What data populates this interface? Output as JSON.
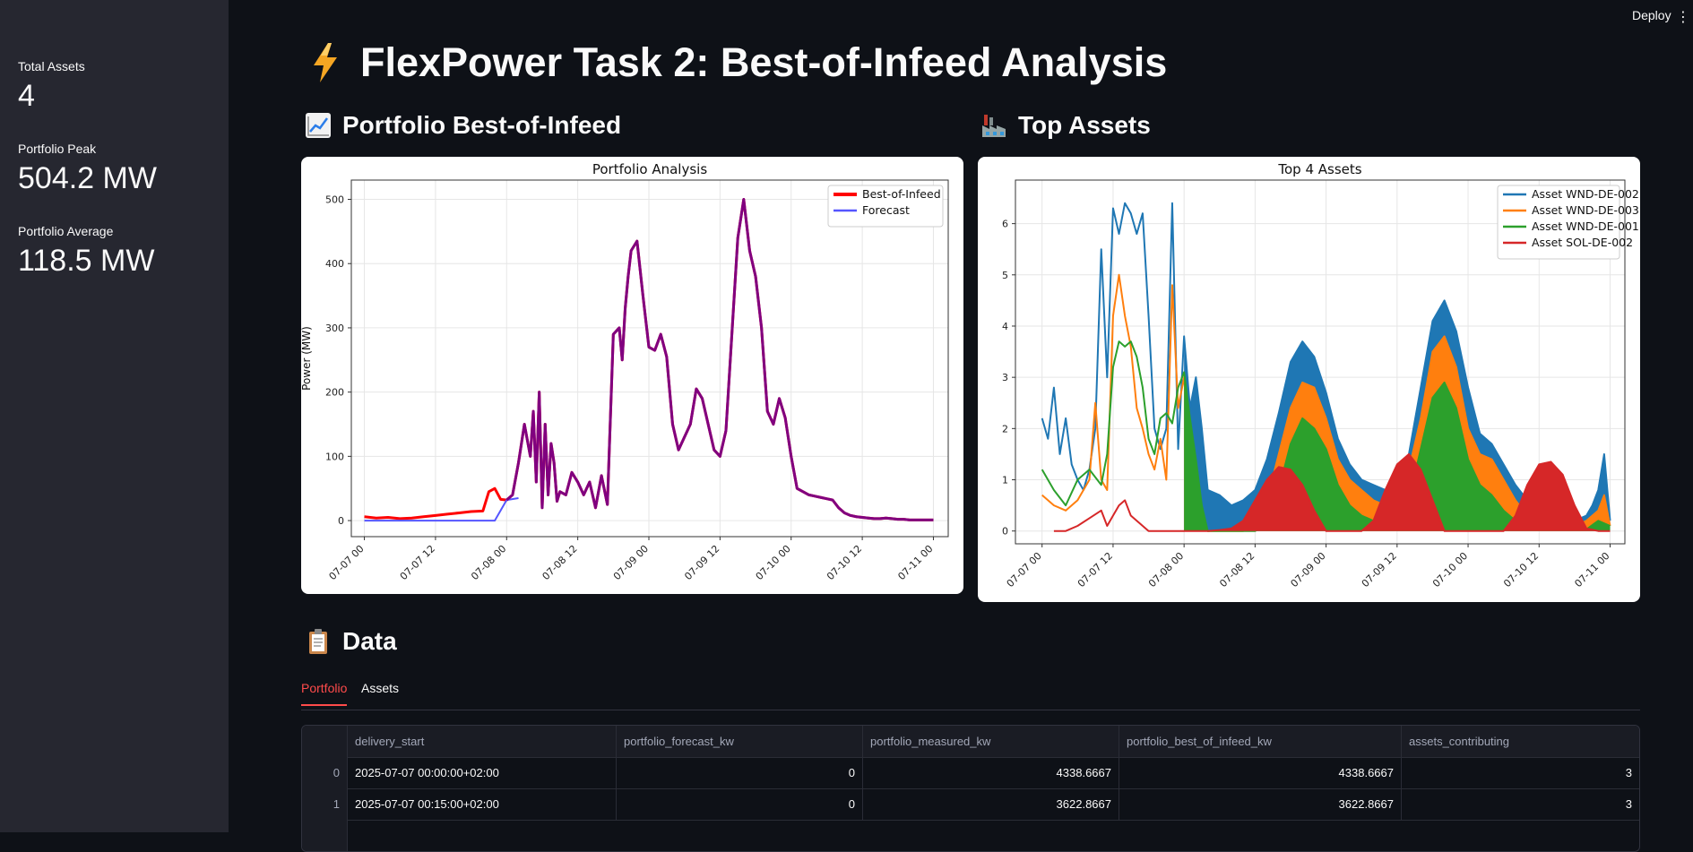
{
  "topbar": {
    "deploy_label": "Deploy",
    "menu_glyph": "⋮"
  },
  "sidebar": {
    "metrics": [
      {
        "label": "Total Assets",
        "value": "4"
      },
      {
        "label": "Portfolio Peak",
        "value": "504.2 MW"
      },
      {
        "label": "Portfolio Average",
        "value": "118.5 MW"
      }
    ]
  },
  "page": {
    "title_icon": "lightning-icon",
    "title": "FlexPower Task 2: Best-of-Infeed Analysis",
    "portfolio_heading": "Portfolio Best-of-Infeed",
    "portfolio_heading_icon": "chart-increasing-icon",
    "assets_heading": "Top Assets",
    "assets_heading_icon": "factory-icon",
    "data_heading": "Data",
    "data_heading_icon": "clipboard-icon"
  },
  "colors": {
    "accent": "#ff4b4b",
    "best_of_infeed": "#ff0000",
    "forecast": "#5555ff",
    "overlap": "#800080",
    "wnd_de_002": "#1f77b4",
    "wnd_de_003": "#ff7f0e",
    "wnd_de_001": "#2ca02c",
    "sol_de_002": "#d62728"
  },
  "chart_data": [
    {
      "type": "line",
      "title": "Portfolio Analysis",
      "xlabel": "",
      "ylabel": "Power (MW)",
      "xticks": [
        "07-07 00",
        "07-07 12",
        "07-08 00",
        "07-08 12",
        "07-09 00",
        "07-09 12",
        "07-10 00",
        "07-10 12",
        "07-11 00"
      ],
      "yticks": [
        0,
        100,
        200,
        300,
        400,
        500
      ],
      "xlim_hours": [
        -2.2,
        98.5
      ],
      "ylim": [
        -25,
        530
      ],
      "grid": true,
      "legend": "top-right",
      "series": [
        {
          "name": "Best-of-Infeed",
          "x": [
            0,
            2,
            4,
            6,
            8,
            10,
            12,
            14,
            16,
            18,
            20,
            21,
            22,
            23,
            24,
            25,
            26,
            27,
            28,
            28.5,
            29,
            29.5,
            30,
            30.5,
            31,
            31.5,
            32,
            32.5,
            33,
            34,
            35,
            36,
            37,
            38,
            39,
            40,
            41,
            42,
            43,
            43.5,
            44,
            44.5,
            45,
            46,
            47,
            48,
            49,
            50,
            51,
            52,
            53,
            54,
            55,
            56,
            57,
            58,
            59,
            60,
            61,
            62,
            63,
            64,
            65,
            66,
            67,
            68,
            69,
            70,
            71,
            72,
            73,
            74,
            75,
            76,
            77,
            78,
            79,
            80,
            81,
            82,
            83,
            84,
            85,
            86,
            87,
            88,
            89,
            90,
            91,
            92,
            93,
            94,
            95,
            96
          ],
          "y": [
            6,
            4,
            5,
            3,
            4,
            6,
            8,
            10,
            12,
            14,
            15,
            45,
            50,
            33,
            32,
            40,
            90,
            150,
            100,
            170,
            60,
            200,
            20,
            150,
            40,
            120,
            90,
            30,
            45,
            40,
            75,
            60,
            40,
            60,
            20,
            70,
            25,
            290,
            300,
            250,
            330,
            380,
            420,
            435,
            350,
            270,
            265,
            290,
            255,
            150,
            110,
            130,
            150,
            205,
            190,
            150,
            110,
            100,
            140,
            290,
            440,
            500,
            420,
            380,
            300,
            170,
            150,
            190,
            160,
            100,
            50,
            45,
            40,
            38,
            36,
            34,
            32,
            20,
            12,
            8,
            6,
            5,
            4,
            3,
            3,
            4,
            3,
            2,
            2,
            1,
            1,
            1,
            1,
            1
          ],
          "color": "#ff0000"
        },
        {
          "name": "Forecast",
          "x": [
            0,
            4,
            8,
            12,
            16,
            20,
            22,
            24,
            26
          ],
          "y": [
            0,
            0,
            0,
            0,
            0,
            0,
            0,
            32,
            35
          ],
          "color": "#5555ff"
        }
      ]
    },
    {
      "type": "area",
      "title": "Top 4 Assets",
      "xlabel": "",
      "ylabel": "Power (MW)",
      "xticks": [
        "07-07 00",
        "07-07 12",
        "07-08 00",
        "07-08 12",
        "07-09 00",
        "07-09 12",
        "07-10 00",
        "07-10 12",
        "07-11 00"
      ],
      "yticks": [
        0,
        1,
        2,
        3,
        4,
        5,
        6
      ],
      "xlim_hours": [
        -4.5,
        98.5
      ],
      "ylim": [
        -0.25,
        6.85
      ],
      "grid": true,
      "legend": "top-right",
      "series": [
        {
          "name": "Asset WND-DE-002",
          "color": "#1f77b4",
          "x": [
            0,
            1,
            2,
            3,
            4,
            5,
            6,
            7,
            8,
            9,
            10,
            11,
            12,
            13,
            14,
            15,
            16,
            17,
            18,
            19,
            20,
            21,
            22,
            23,
            24,
            25,
            26,
            27,
            28,
            30,
            32,
            34,
            36,
            38,
            40,
            42,
            44,
            46,
            48,
            50,
            52,
            54,
            56,
            58,
            60,
            62,
            64,
            66,
            68,
            70,
            72,
            74,
            76,
            78,
            80,
            82,
            84,
            86,
            88,
            90,
            92,
            93,
            94,
            95,
            96
          ],
          "y": [
            2.2,
            1.8,
            2.8,
            1.5,
            2.2,
            1.3,
            1.0,
            0.8,
            1.2,
            2.0,
            5.5,
            3.0,
            6.3,
            5.8,
            6.4,
            6.2,
            5.8,
            6.2,
            4.2,
            2.0,
            1.6,
            2.0,
            6.4,
            1.6,
            3.8,
            2.4,
            3.0,
            2.0,
            0.8,
            0.7,
            0.5,
            0.6,
            0.8,
            1.4,
            2.3,
            3.3,
            3.7,
            3.4,
            2.7,
            1.8,
            1.3,
            1.0,
            0.9,
            0.8,
            0.9,
            1.5,
            2.8,
            4.1,
            4.5,
            3.9,
            2.8,
            1.9,
            1.7,
            1.3,
            0.9,
            0.6,
            0.4,
            0.3,
            0.2,
            0.2,
            0.3,
            0.5,
            0.8,
            1.5,
            0.2
          ]
        },
        {
          "name": "Asset WND-DE-003",
          "color": "#ff7f0e",
          "x": [
            0,
            2,
            4,
            6,
            8,
            9,
            10,
            11,
            12,
            13,
            14,
            15,
            16,
            17,
            18,
            19,
            20,
            21,
            22,
            23,
            24,
            25,
            26,
            27,
            28,
            30,
            32,
            34,
            36,
            38,
            40,
            42,
            44,
            46,
            48,
            50,
            52,
            54,
            56,
            58,
            60,
            62,
            64,
            66,
            68,
            70,
            72,
            74,
            76,
            78,
            80,
            82,
            84,
            86,
            88,
            90,
            92,
            94,
            95,
            96
          ],
          "y": [
            0.7,
            0.5,
            0.4,
            0.6,
            1.0,
            2.5,
            1.0,
            0.8,
            4.2,
            5.0,
            4.2,
            3.6,
            2.4,
            2.0,
            1.5,
            1.2,
            1.8,
            1.0,
            4.8,
            2.4,
            3.0,
            1.5,
            0.6,
            0.2,
            0.0,
            0.0,
            0.0,
            0.0,
            0.1,
            0.6,
            1.5,
            2.4,
            2.9,
            2.8,
            2.2,
            1.4,
            1.0,
            0.8,
            0.6,
            0.5,
            0.6,
            1.2,
            2.2,
            3.5,
            3.8,
            3.2,
            2.0,
            1.5,
            1.4,
            1.0,
            0.6,
            0.3,
            0.2,
            0.1,
            0.1,
            0.1,
            0.2,
            0.4,
            0.7,
            0.1
          ]
        },
        {
          "name": "Asset WND-DE-001",
          "color": "#2ca02c",
          "x": [
            0,
            2,
            4,
            6,
            8,
            10,
            11,
            12,
            13,
            14,
            15,
            16,
            17,
            18,
            19,
            20,
            21,
            22,
            23,
            24,
            25,
            26,
            27,
            28,
            30,
            32,
            34,
            36,
            38,
            40,
            42,
            44,
            46,
            48,
            50,
            52,
            54,
            56,
            58,
            60,
            62,
            64,
            66,
            68,
            70,
            72,
            74,
            76,
            78,
            80,
            82,
            84,
            86,
            88,
            90,
            92,
            94,
            96
          ],
          "y": [
            1.2,
            0.8,
            0.5,
            1.0,
            1.2,
            0.9,
            1.5,
            3.2,
            3.7,
            3.6,
            3.7,
            3.4,
            2.8,
            1.8,
            1.5,
            2.2,
            2.3,
            2.1,
            2.8,
            3.1,
            2.2,
            1.4,
            0.5,
            0.0,
            0.0,
            0.0,
            0.0,
            0.0,
            0.1,
            0.8,
            1.7,
            2.2,
            2.0,
            1.6,
            0.9,
            0.5,
            0.3,
            0.2,
            0.2,
            0.3,
            0.6,
            1.6,
            2.6,
            2.9,
            2.4,
            1.4,
            0.9,
            0.7,
            0.4,
            0.2,
            0.05,
            0.05,
            0.03,
            0.02,
            0.02,
            0.03,
            0.2,
            0.1
          ]
        },
        {
          "name": "Asset SOL-DE-002",
          "color": "#d62728",
          "x": [
            2,
            4,
            6,
            8,
            10,
            11,
            12,
            13,
            14,
            15,
            16,
            18,
            20,
            22,
            24,
            26,
            28,
            30,
            32,
            34,
            36,
            38,
            40,
            42,
            44,
            46,
            48,
            50,
            52,
            54,
            56,
            58,
            60,
            62,
            64,
            66,
            68,
            70,
            72,
            74,
            76,
            78,
            80,
            82,
            84,
            86,
            88,
            90,
            92,
            94,
            96
          ],
          "y": [
            0.0,
            0.0,
            0.1,
            0.25,
            0.4,
            0.1,
            0.3,
            0.5,
            0.6,
            0.3,
            0.2,
            0.0,
            0.0,
            0.0,
            0.0,
            0.0,
            0.0,
            0.02,
            0.05,
            0.2,
            0.6,
            1.0,
            1.25,
            1.2,
            0.9,
            0.4,
            0.0,
            0.0,
            0.0,
            0.0,
            0.2,
            0.8,
            1.3,
            1.5,
            1.2,
            0.6,
            0.0,
            0.0,
            0.0,
            0.0,
            0.0,
            0.0,
            0.3,
            0.9,
            1.3,
            1.35,
            1.1,
            0.5,
            0.05,
            0.0,
            0.0
          ]
        }
      ]
    }
  ],
  "data_tabs": {
    "portfolio": "Portfolio",
    "assets": "Assets"
  },
  "table": {
    "columns": [
      "",
      "delivery_start",
      "portfolio_forecast_kw",
      "portfolio_measured_kw",
      "portfolio_best_of_infeed_kw",
      "assets_contributing"
    ],
    "rows": [
      [
        "0",
        "2025-07-07 00:00:00+02:00",
        "0",
        "4338.6667",
        "4338.6667",
        "3"
      ],
      [
        "1",
        "2025-07-07 00:15:00+02:00",
        "0",
        "3622.8667",
        "3622.8667",
        "3"
      ]
    ]
  }
}
